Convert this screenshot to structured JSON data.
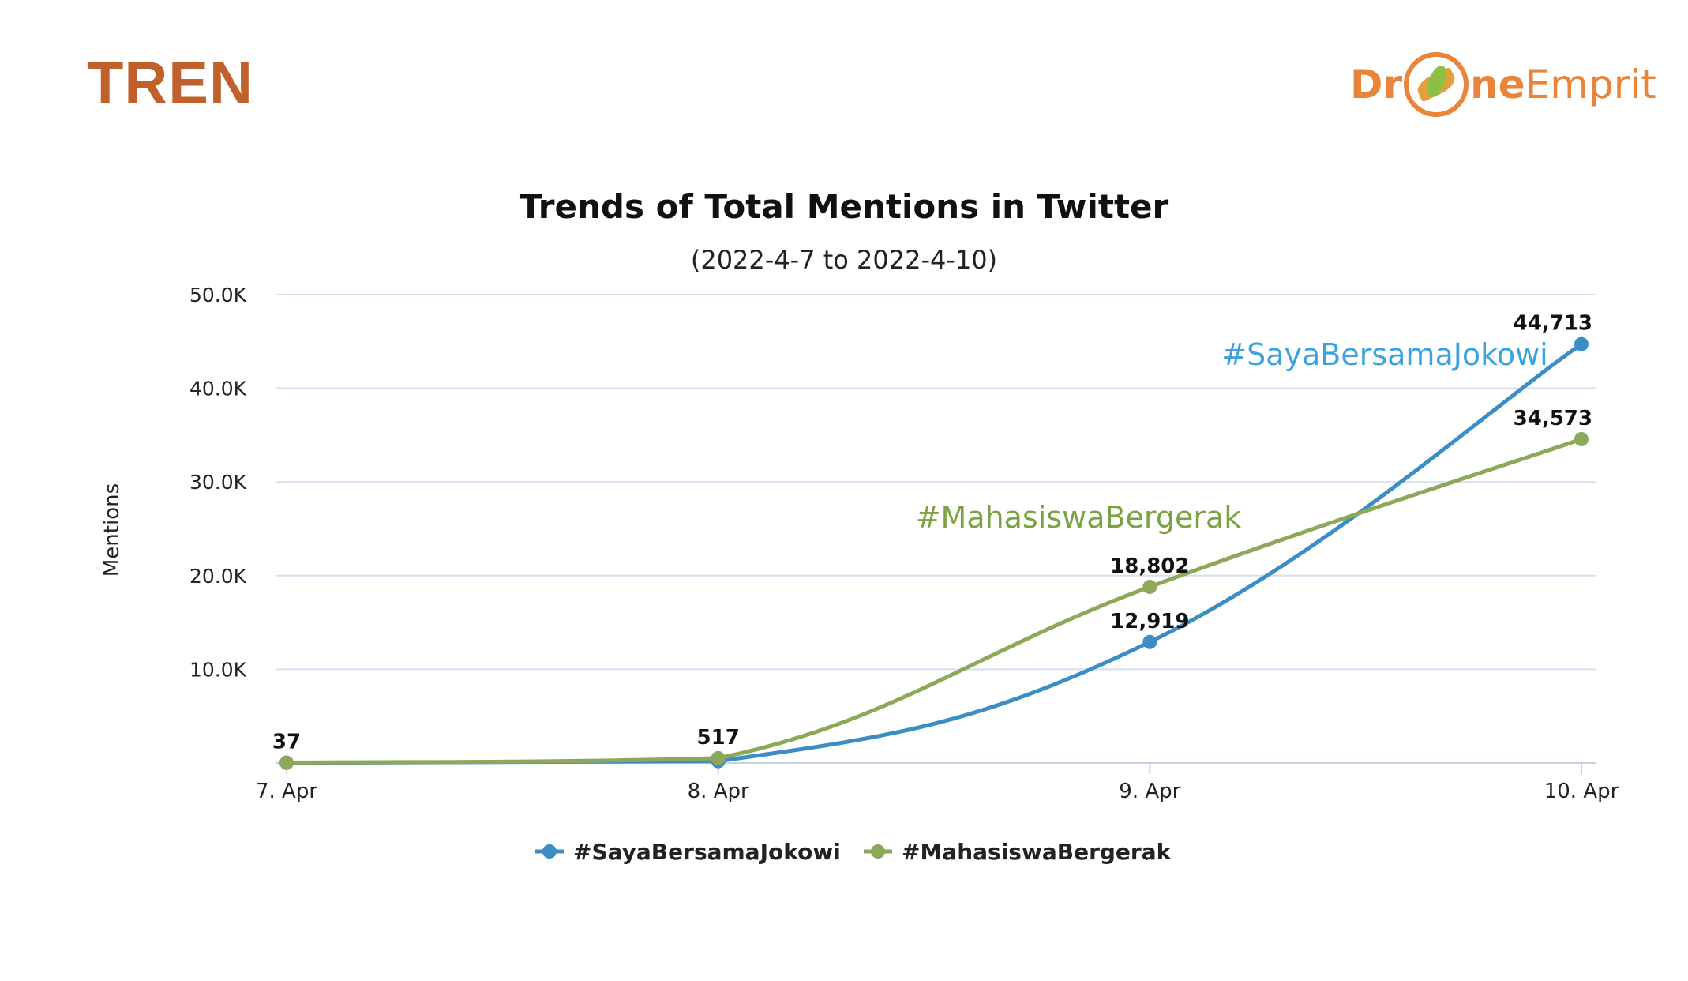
{
  "heading": "TREN",
  "logo": {
    "part1": "Dr",
    "part2": "ne",
    "part3": "Emprit"
  },
  "colors": {
    "heading": "#c0602a",
    "logo": "#e8853a",
    "series1": "#3b8dc6",
    "series2": "#8ea85a",
    "annot1": "#3aa3dd",
    "annot2": "#7aa342",
    "grid": "#d8def0"
  },
  "chart_data": {
    "type": "line",
    "title": "Trends of Total Mentions in Twitter",
    "subtitle": "(2022-4-7 to 2022-4-10)",
    "xlabel": "",
    "ylabel": "Mentions",
    "categories": [
      "7. Apr",
      "8. Apr",
      "9. Apr",
      "10. Apr"
    ],
    "ylim": [
      0,
      50000
    ],
    "yticks": [
      10000,
      20000,
      30000,
      40000,
      50000
    ],
    "ytick_labels": [
      "10.0K",
      "20.0K",
      "30.0K",
      "40.0K",
      "50.0K"
    ],
    "grid": true,
    "legend_position": "bottom",
    "series": [
      {
        "name": "#SayaBersamaJokowi",
        "values": [
          20,
          200,
          12919,
          44713
        ],
        "labels": [
          "",
          "",
          "12,919",
          "44,713"
        ]
      },
      {
        "name": "#MahasiswaBergerak",
        "values": [
          37,
          517,
          18802,
          34573
        ],
        "labels": [
          "37",
          "517",
          "18,802",
          "34,573"
        ]
      }
    ],
    "annotations": [
      "#SayaBersamaJokowi",
      "#MahasiswaBergerak"
    ]
  }
}
